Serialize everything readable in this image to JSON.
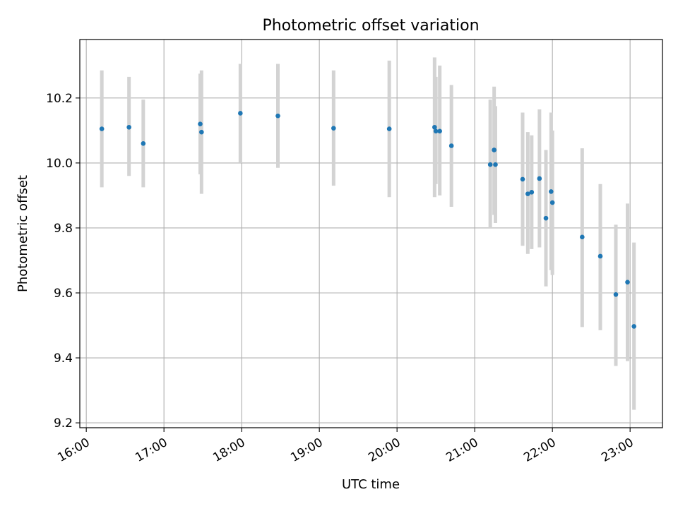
{
  "chart_data": {
    "type": "scatter",
    "title": "Photometric offset variation",
    "xlabel": "UTC time",
    "ylabel": "Photometric offset",
    "x_axis": {
      "kind": "time",
      "range": [
        "15:55",
        "23:25"
      ],
      "ticks": [
        "16:00",
        "17:00",
        "18:00",
        "19:00",
        "20:00",
        "21:00",
        "22:00",
        "23:00"
      ]
    },
    "y_axis": {
      "range": [
        9.185,
        10.38
      ],
      "ticks": [
        9.2,
        9.4,
        9.6,
        9.8,
        10.0,
        10.2
      ]
    },
    "grid": true,
    "colors": {
      "point": "#1f77b4",
      "errorbar": "#d3d3d3",
      "grid": "#b0b0b0"
    },
    "points": [
      {
        "x": "16:12",
        "y": 10.105,
        "low": 9.925,
        "high": 10.285
      },
      {
        "x": "16:33",
        "y": 10.11,
        "low": 9.96,
        "high": 10.265
      },
      {
        "x": "16:44",
        "y": 10.06,
        "low": 9.925,
        "high": 10.195
      },
      {
        "x": "17:28",
        "y": 10.12,
        "low": 9.965,
        "high": 10.275
      },
      {
        "x": "17:29",
        "y": 10.095,
        "low": 9.905,
        "high": 10.285
      },
      {
        "x": "17:59",
        "y": 10.153,
        "low": 10.0,
        "high": 10.305
      },
      {
        "x": "18:28",
        "y": 10.145,
        "low": 9.985,
        "high": 10.305
      },
      {
        "x": "19:11",
        "y": 10.107,
        "low": 9.93,
        "high": 10.285
      },
      {
        "x": "19:54",
        "y": 10.105,
        "low": 9.895,
        "high": 10.315
      },
      {
        "x": "20:29",
        "y": 10.11,
        "low": 9.895,
        "high": 10.325
      },
      {
        "x": "20:30",
        "y": 10.098,
        "low": 9.935,
        "high": 10.265
      },
      {
        "x": "20:33",
        "y": 10.098,
        "low": 9.9,
        "high": 10.3
      },
      {
        "x": "20:42",
        "y": 10.053,
        "low": 9.865,
        "high": 10.24
      },
      {
        "x": "21:12",
        "y": 9.995,
        "low": 9.8,
        "high": 10.195
      },
      {
        "x": "21:15",
        "y": 10.04,
        "low": 9.84,
        "high": 10.235
      },
      {
        "x": "21:16",
        "y": 9.995,
        "low": 9.815,
        "high": 10.175
      },
      {
        "x": "21:37",
        "y": 9.95,
        "low": 9.745,
        "high": 10.155
      },
      {
        "x": "21:41",
        "y": 9.905,
        "low": 9.72,
        "high": 10.095
      },
      {
        "x": "21:44",
        "y": 9.91,
        "low": 9.735,
        "high": 10.085
      },
      {
        "x": "21:50",
        "y": 9.952,
        "low": 9.74,
        "high": 10.165
      },
      {
        "x": "21:55",
        "y": 9.83,
        "low": 9.62,
        "high": 10.04
      },
      {
        "x": "21:59",
        "y": 9.912,
        "low": 9.67,
        "high": 10.155
      },
      {
        "x": "22:00",
        "y": 9.878,
        "low": 9.655,
        "high": 10.1
      },
      {
        "x": "22:23",
        "y": 9.772,
        "low": 9.495,
        "high": 10.045
      },
      {
        "x": "22:37",
        "y": 9.713,
        "low": 9.485,
        "high": 9.935
      },
      {
        "x": "22:49",
        "y": 9.595,
        "low": 9.375,
        "high": 9.81
      },
      {
        "x": "22:58",
        "y": 9.633,
        "low": 9.39,
        "high": 9.875
      },
      {
        "x": "23:03",
        "y": 9.497,
        "low": 9.24,
        "high": 9.755
      }
    ]
  }
}
